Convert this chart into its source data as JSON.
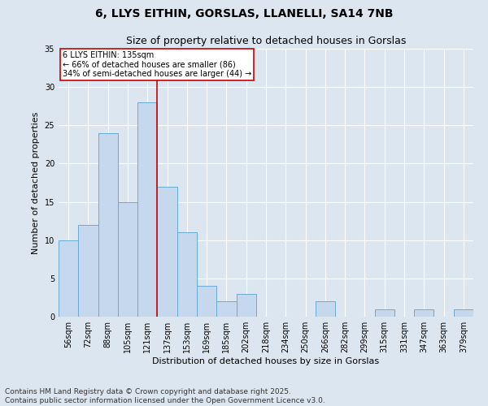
{
  "title1": "6, LLYS EITHIN, GORSLAS, LLANELLI, SA14 7NB",
  "title2": "Size of property relative to detached houses in Gorslas",
  "xlabel": "Distribution of detached houses by size in Gorslas",
  "ylabel": "Number of detached properties",
  "categories": [
    "56sqm",
    "72sqm",
    "88sqm",
    "105sqm",
    "121sqm",
    "137sqm",
    "153sqm",
    "169sqm",
    "185sqm",
    "202sqm",
    "218sqm",
    "234sqm",
    "250sqm",
    "266sqm",
    "282sqm",
    "299sqm",
    "315sqm",
    "331sqm",
    "347sqm",
    "363sqm",
    "379sqm"
  ],
  "values": [
    10,
    12,
    24,
    15,
    28,
    17,
    11,
    4,
    2,
    3,
    0,
    0,
    0,
    2,
    0,
    0,
    1,
    0,
    1,
    0,
    1
  ],
  "bar_color": "#c5d8ed",
  "bar_edge_color": "#6aaad4",
  "marker_line_index": 5,
  "marker_label": "6 LLYS EITHIN: 135sqm",
  "annotation_line1": "← 66% of detached houses are smaller (86)",
  "annotation_line2": "34% of semi-detached houses are larger (44) →",
  "annotation_box_color": "#ffffff",
  "annotation_box_edge": "#cc0000",
  "marker_line_color": "#cc0000",
  "ylim": [
    0,
    35
  ],
  "yticks": [
    0,
    5,
    10,
    15,
    20,
    25,
    30,
    35
  ],
  "background_color": "#dce6f0",
  "footer": "Contains HM Land Registry data © Crown copyright and database right 2025.\nContains public sector information licensed under the Open Government Licence v3.0.",
  "title_fontsize": 10,
  "subtitle_fontsize": 9,
  "axis_label_fontsize": 8,
  "tick_fontsize": 7,
  "footer_fontsize": 6.5
}
